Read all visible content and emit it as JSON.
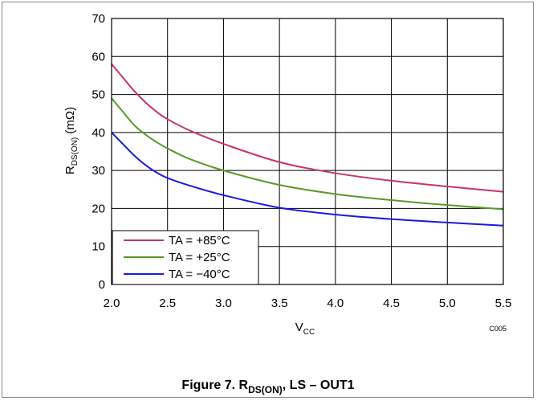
{
  "chart_data": {
    "type": "line",
    "title": "",
    "xlabel": {
      "main": "V",
      "sub": "CC"
    },
    "ylabel": {
      "main": "R",
      "sub": "DS(ON)",
      "suffix": " (mΩ)"
    },
    "xlim": [
      2.0,
      5.5
    ],
    "ylim": [
      0,
      70
    ],
    "xticks": [
      "2.0",
      "2.5",
      "3.0",
      "3.5",
      "4.0",
      "4.5",
      "5.0",
      "5.5"
    ],
    "yticks": [
      "0",
      "10",
      "20",
      "30",
      "40",
      "50",
      "60",
      "70"
    ],
    "grid": true,
    "legend_position": "bottom-left",
    "series": [
      {
        "name": "TA = +85°C",
        "color": "#c8326e",
        "x": [
          2.0,
          2.1,
          2.2,
          2.3,
          2.4,
          2.5,
          2.7,
          3.0,
          3.5,
          4.0,
          4.5,
          5.0,
          5.5
        ],
        "y": [
          58,
          54.5,
          51,
          48,
          45.5,
          43.5,
          40.5,
          37,
          32.2,
          29.3,
          27.3,
          25.8,
          24.4
        ]
      },
      {
        "name": "TA = +25°C",
        "color": "#5a9a28",
        "x": [
          2.0,
          2.1,
          2.2,
          2.3,
          2.4,
          2.5,
          2.7,
          3.0,
          3.5,
          4.0,
          4.5,
          5.0,
          5.5
        ],
        "y": [
          49,
          45.5,
          42,
          39.5,
          37.5,
          35.8,
          33,
          30,
          26.2,
          23.8,
          22.2,
          20.9,
          19.8
        ]
      },
      {
        "name": "TA = −40°C",
        "color": "#1a1ae6",
        "x": [
          2.0,
          2.1,
          2.2,
          2.3,
          2.4,
          2.5,
          2.7,
          3.0,
          3.5,
          4.0,
          4.5,
          5.0,
          5.5
        ],
        "y": [
          40,
          37,
          34,
          31.5,
          29.5,
          28,
          26,
          23.5,
          20.2,
          18.4,
          17.2,
          16.3,
          15.5
        ]
      }
    ],
    "annotations": [
      "C005"
    ],
    "caption": {
      "main": "Figure 7. R",
      "sub": "DS(ON)",
      "suffix": ", LS – OUT1"
    }
  }
}
